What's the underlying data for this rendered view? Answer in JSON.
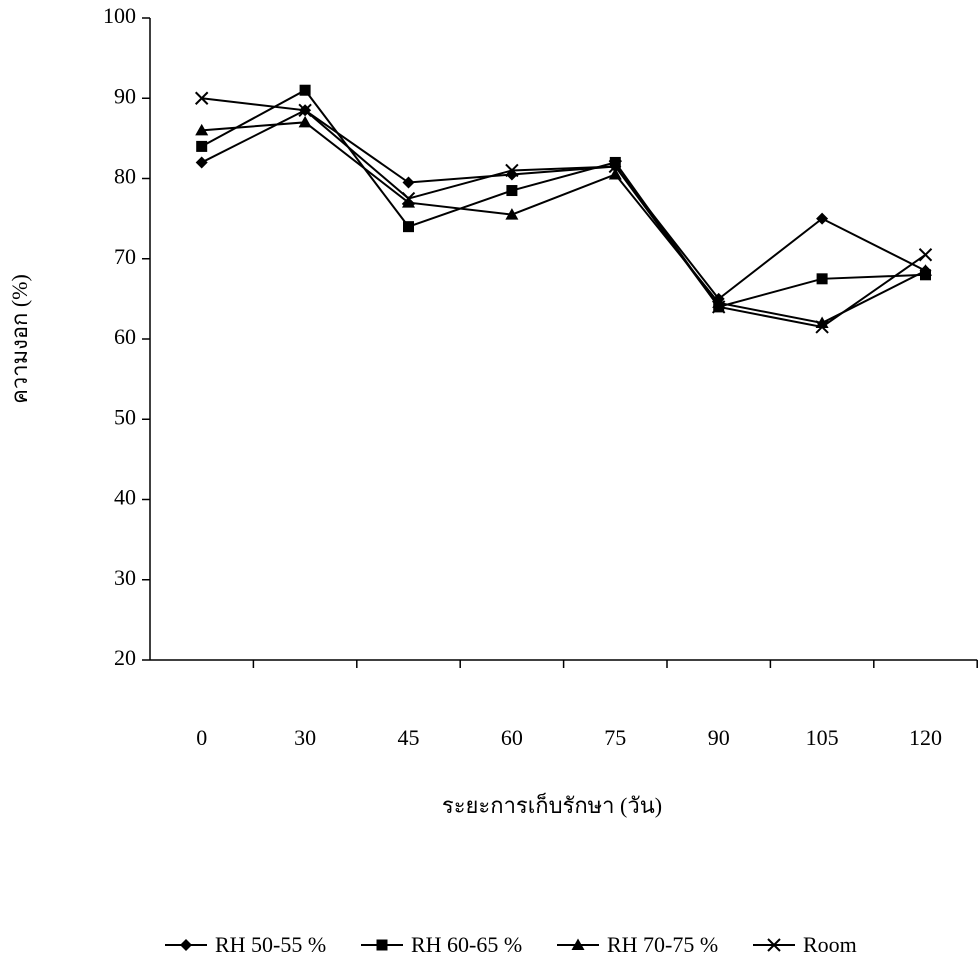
{
  "chart_data": {
    "type": "line",
    "y_label": "ความงอก (%)",
    "x_label": "ระยะการเก็บรักษา (วัน)",
    "categories": [
      "0",
      "30",
      "45",
      "60",
      "75",
      "90",
      "105",
      "120"
    ],
    "series": [
      {
        "name": "RH 50-55 %",
        "color": "#000000",
        "marker": "diamond",
        "values": [
          82,
          88.5,
          79.5,
          80.5,
          81.5,
          65,
          75,
          68.5
        ]
      },
      {
        "name": "RH 60-65 %",
        "color": "#000000",
        "marker": "square",
        "values": [
          84,
          91,
          74,
          78.5,
          82,
          64,
          67.5,
          68
        ]
      },
      {
        "name": "RH 70-75 %",
        "color": "#000000",
        "marker": "triangle",
        "values": [
          86,
          87,
          77,
          75.5,
          80.5,
          64.5,
          62,
          68.5
        ]
      },
      {
        "name": "Room",
        "color": "#000000",
        "marker": "x",
        "values": [
          90,
          88.5,
          77.5,
          81,
          81.5,
          64,
          61.5,
          70.5
        ]
      }
    ],
    "ylim": [
      20,
      100
    ],
    "yticks": [
      20,
      30,
      40,
      50,
      60,
      70,
      80,
      90,
      100
    ]
  }
}
